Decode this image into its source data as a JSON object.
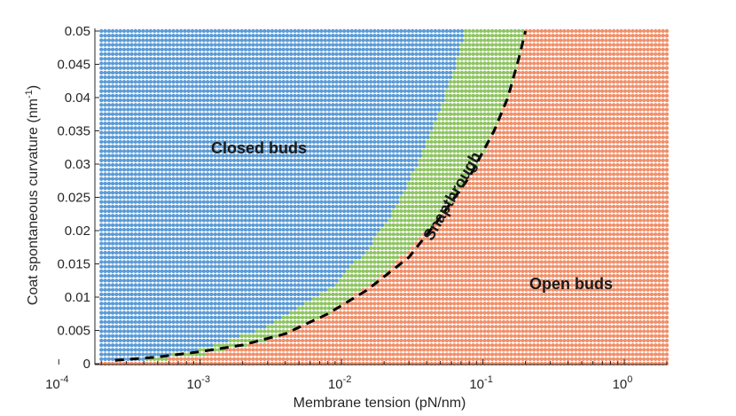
{
  "chart_data": {
    "type": "scatter",
    "xlabel": "Membrane tension (pN/nm)",
    "ylabel": "Coat spontaneous curvature (nm",
    "ylabel_superscript": "-1",
    "ylabel_suffix": ")",
    "x_scale": "log",
    "xlim": [
      0.00018,
      2.0
    ],
    "ylim": [
      0,
      0.05
    ],
    "grid": false,
    "legend": "none",
    "x_ticks": [
      {
        "base": "10",
        "exp": "-4",
        "value": 0.0001
      },
      {
        "base": "10",
        "exp": "-3",
        "value": 0.001
      },
      {
        "base": "10",
        "exp": "-2",
        "value": 0.01
      },
      {
        "base": "10",
        "exp": "-1",
        "value": 0.1
      },
      {
        "base": "10",
        "exp": "0",
        "value": 1
      }
    ],
    "y_ticks": [
      {
        "label": "0",
        "value": 0
      },
      {
        "label": "0.005",
        "value": 0.005
      },
      {
        "label": "0.01",
        "value": 0.01
      },
      {
        "label": "0.015",
        "value": 0.015
      },
      {
        "label": "0.02",
        "value": 0.02
      },
      {
        "label": "0.025",
        "value": 0.025
      },
      {
        "label": "0.03",
        "value": 0.03
      },
      {
        "label": "0.035",
        "value": 0.035
      },
      {
        "label": "0.04",
        "value": 0.04
      },
      {
        "label": "0.045",
        "value": 0.045
      },
      {
        "label": "0.05",
        "value": 0.05
      }
    ],
    "regions": [
      {
        "name": "Closed buds",
        "color": "#5b9bd5"
      },
      {
        "name": "Snapthrough",
        "color": "#8fc463"
      },
      {
        "name": "Open buds",
        "color": "#f0906a"
      }
    ],
    "region_labels": {
      "closed": "Closed buds",
      "snap": "Snapthrough",
      "open": "Open buds"
    },
    "boundaries": {
      "closed_snap": [
        [
          0.00018,
          0.0
        ],
        [
          0.0002,
          0.0001
        ],
        [
          0.00035,
          0.0005
        ],
        [
          0.001,
          0.0021
        ],
        [
          0.003,
          0.0055
        ],
        [
          0.008,
          0.011
        ],
        [
          0.015,
          0.017
        ],
        [
          0.025,
          0.024
        ],
        [
          0.04,
          0.033
        ],
        [
          0.06,
          0.043
        ],
        [
          0.075,
          0.05
        ]
      ],
      "snap_open": [
        [
          0.00018,
          0.0
        ],
        [
          0.0003,
          0.0
        ],
        [
          0.001,
          0.0012
        ],
        [
          0.003,
          0.0035
        ],
        [
          0.008,
          0.0075
        ],
        [
          0.02,
          0.0135
        ],
        [
          0.05,
          0.022
        ],
        [
          0.1,
          0.031
        ],
        [
          0.15,
          0.04
        ],
        [
          0.2,
          0.05
        ]
      ]
    },
    "dashed_line": {
      "color": "#000000",
      "points": [
        [
          0.00025,
          0.0005
        ],
        [
          0.0005,
          0.001
        ],
        [
          0.001,
          0.0018
        ],
        [
          0.002,
          0.0028
        ],
        [
          0.004,
          0.0045
        ],
        [
          0.008,
          0.0075
        ],
        [
          0.015,
          0.011
        ],
        [
          0.03,
          0.016
        ],
        [
          0.05,
          0.022
        ],
        [
          0.08,
          0.028
        ],
        [
          0.12,
          0.035
        ],
        [
          0.15,
          0.04
        ],
        [
          0.18,
          0.046
        ],
        [
          0.2,
          0.05
        ]
      ]
    },
    "grid_counts": {
      "x": 150,
      "y": 73
    }
  }
}
